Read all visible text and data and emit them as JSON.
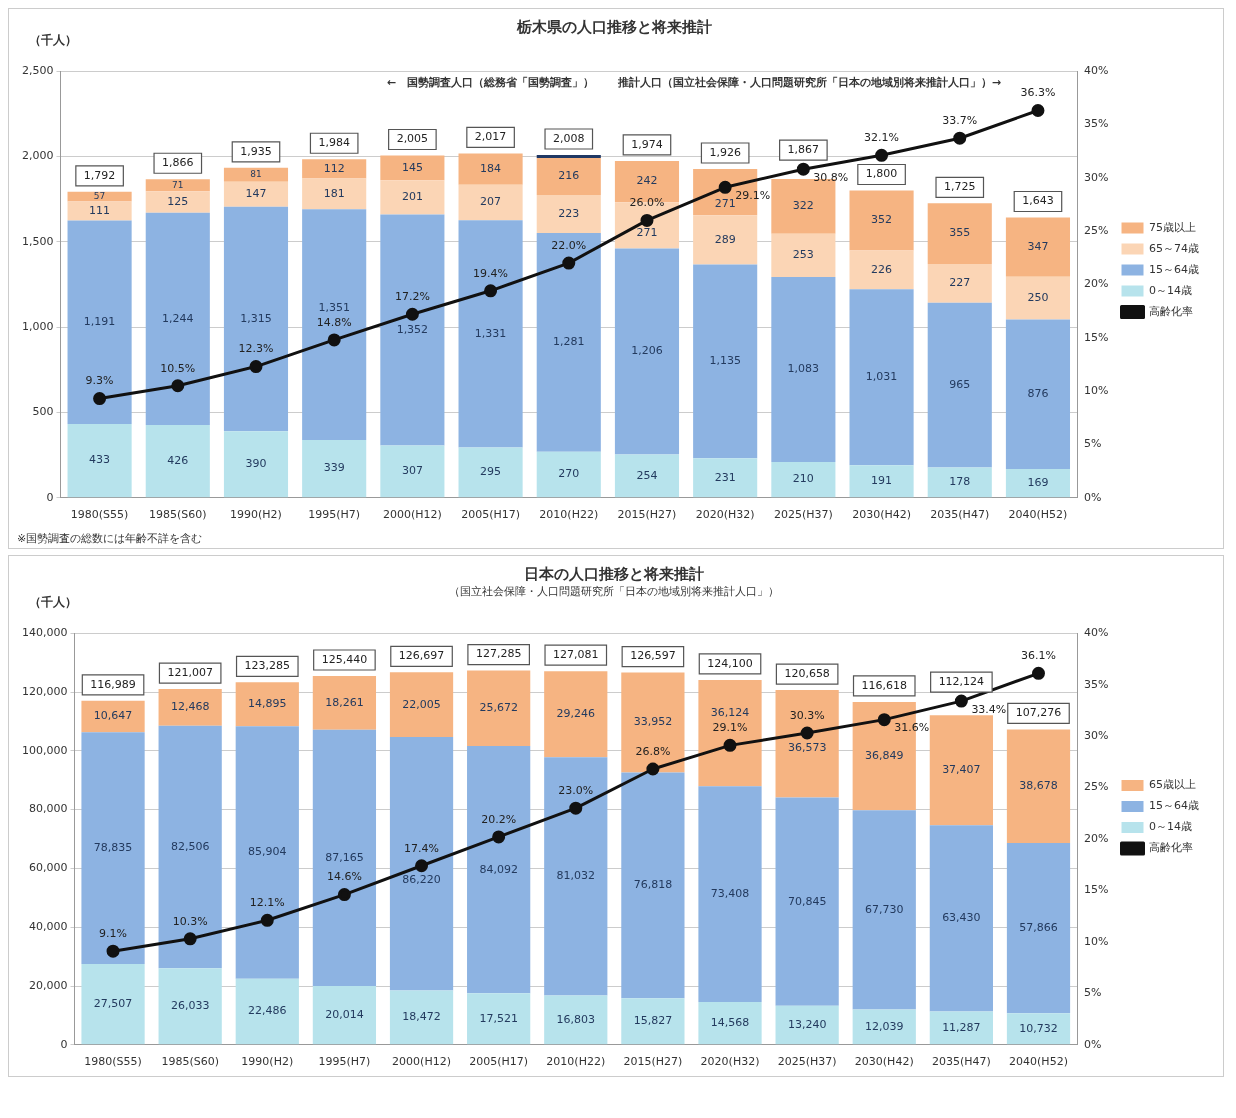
{
  "chart_data": [
    {
      "type": "bar",
      "title": "栃木県の人口推移と将来推計",
      "ylabel": "（千人）",
      "stacked": true,
      "grid": "y",
      "legend": "right",
      "categories": [
        "1980(S55)",
        "1985(S60)",
        "1990(H2)",
        "1995(H7)",
        "2000(H12)",
        "2005(H17)",
        "2010(H22)",
        "2015(H27)",
        "2020(H32)",
        "2025(H37)",
        "2030(H42)",
        "2035(H47)",
        "2040(H52)"
      ],
      "series": [
        {
          "name": "0～14歳",
          "color": "#b7e3ec",
          "values": [
            433,
            426,
            390,
            339,
            307,
            295,
            270,
            254,
            231,
            210,
            191,
            178,
            169
          ],
          "value_labels": [
            "433",
            "426",
            "390",
            "339",
            "307",
            "295",
            "270",
            "254",
            "231",
            "210",
            "191",
            "178",
            "169"
          ]
        },
        {
          "name": "15～64歳",
          "color": "#8db3e2",
          "values": [
            1191,
            1244,
            1315,
            1351,
            1352,
            1331,
            1281,
            1206,
            1135,
            1083,
            1031,
            965,
            876
          ],
          "value_labels": [
            "1,191",
            "1,244",
            "1,315",
            "1,351",
            "1,352",
            "1,331",
            "1,281",
            "1,206",
            "1,135",
            "1,083",
            "1,031",
            "965",
            "876"
          ]
        },
        {
          "name": "65～74歳",
          "color": "#fbd5b5",
          "values": [
            111,
            125,
            147,
            181,
            201,
            207,
            223,
            271,
            289,
            253,
            226,
            227,
            250
          ],
          "value_labels": [
            "111",
            "125",
            "147",
            "181",
            "201",
            "207",
            "223",
            "271",
            "289",
            "253",
            "226",
            "227",
            "250"
          ]
        },
        {
          "name": "75歳以上",
          "color": "#f6b482",
          "values": [
            57,
            71,
            81,
            112,
            145,
            184,
            216,
            242,
            271,
            322,
            352,
            355,
            347
          ],
          "value_labels": [
            "57",
            "71",
            "81",
            "112",
            "145",
            "184",
            "216",
            "242",
            "271",
            "322",
            "352",
            "355",
            "347"
          ]
        },
        {
          "color": "#1f3864",
          "values": [
            null,
            null,
            null,
            null,
            null,
            null,
            18,
            null,
            null,
            null,
            null,
            null,
            null
          ]
        },
        {
          "name": "高齢化率",
          "type": "line",
          "axis": "y2",
          "color": "#111111",
          "marker": "circle",
          "values": [
            9.3,
            10.5,
            12.3,
            14.8,
            17.2,
            19.4,
            22.0,
            26.0,
            29.1,
            30.8,
            32.1,
            33.7,
            36.3
          ],
          "value_labels": [
            "9.3%",
            "10.5%",
            "12.3%",
            "14.8%",
            "17.2%",
            "19.4%",
            "22.0%",
            "26.0%",
            "29.1%",
            "30.8%",
            "32.1%",
            "33.7%",
            "36.3%"
          ]
        }
      ],
      "totals": [
        "1,792",
        "1,866",
        "1,935",
        "1,984",
        "2,005",
        "2,017",
        "2,008",
        "1,974",
        "1,926",
        "1,867",
        "1,800",
        "1,725",
        "1,643"
      ],
      "ylim": [
        0,
        2500
      ],
      "yticks": [
        0,
        {
          "value": 500,
          "label": "500"
        },
        {
          "value": 1000,
          "label": "1,000"
        },
        {
          "value": 1500,
          "label": "1,500"
        },
        {
          "value": 2000,
          "label": "2,000"
        },
        {
          "value": 2500,
          "label": "2,500"
        }
      ],
      "y2lim": [
        0,
        40
      ],
      "y2ticks": [
        {
          "value": 0,
          "label": "0%"
        },
        {
          "value": 5,
          "label": "5%"
        },
        {
          "value": 10,
          "label": "10%"
        },
        {
          "value": 15,
          "label": "15%"
        },
        {
          "value": 20,
          "label": "20%"
        },
        {
          "value": 25,
          "label": "25%"
        },
        {
          "value": 30,
          "label": "30%"
        },
        {
          "value": 35,
          "label": "35%"
        },
        {
          "value": 40,
          "label": "40%"
        }
      ],
      "annotations": [
        "←　国勢調査人口（総務省「国勢調査」）",
        "推計人口（国立社会保障・人口問題研究所「日本の地域別将来推計人口」）→",
        "※国勢調査の総数には年齢不詳を含む"
      ]
    },
    {
      "type": "bar",
      "title": "日本の人口推移と将来推計",
      "subtitle": "（国立社会保障・人口問題研究所「日本の地域別将来推計人口」）",
      "ylabel": "（千人）",
      "stacked": true,
      "grid": "y",
      "legend": "right",
      "categories": [
        "1980(S55)",
        "1985(S60)",
        "1990(H2)",
        "1995(H7)",
        "2000(H12)",
        "2005(H17)",
        "2010(H22)",
        "2015(H27)",
        "2020(H32)",
        "2025(H37)",
        "2030(H42)",
        "2035(H47)",
        "2040(H52)"
      ],
      "series": [
        {
          "name": "0～14歳",
          "color": "#b7e3ec",
          "values": [
            27507,
            26033,
            22486,
            20014,
            18472,
            17521,
            16803,
            15827,
            14568,
            13240,
            12039,
            11287,
            10732
          ],
          "value_labels": [
            "27,507",
            "26,033",
            "22,486",
            "20,014",
            "18,472",
            "17,521",
            "16,803",
            "15,827",
            "14,568",
            "13,240",
            "12,039",
            "11,287",
            "10,732"
          ]
        },
        {
          "name": "15～64歳",
          "color": "#8db3e2",
          "values": [
            78835,
            82506,
            85904,
            87165,
            86220,
            84092,
            81032,
            76818,
            73408,
            70845,
            67730,
            63430,
            57866
          ],
          "value_labels": [
            "78,835",
            "82,506",
            "85,904",
            "87,165",
            "86,220",
            "84,092",
            "81,032",
            "76,818",
            "73,408",
            "70,845",
            "67,730",
            "63,430",
            "57,866"
          ]
        },
        {
          "name": "65歳以上",
          "color": "#f6b482",
          "values": [
            10647,
            12468,
            14895,
            18261,
            22005,
            25672,
            29246,
            33952,
            36124,
            36573,
            36849,
            37407,
            38678
          ],
          "value_labels": [
            "10,647",
            "12,468",
            "14,895",
            "18,261",
            "22,005",
            "25,672",
            "29,246",
            "33,952",
            "36,124",
            "36,573",
            "36,849",
            "37,407",
            "38,678"
          ]
        },
        {
          "name": "高齢化率",
          "type": "line",
          "axis": "y2",
          "color": "#111111",
          "marker": "circle",
          "values": [
            9.1,
            10.3,
            12.1,
            14.6,
            17.4,
            20.2,
            23.0,
            26.8,
            29.1,
            30.3,
            31.6,
            33.4,
            36.1
          ],
          "value_labels": [
            "9.1%",
            "10.3%",
            "12.1%",
            "14.6%",
            "17.4%",
            "20.2%",
            "23.0%",
            "26.8%",
            "29.1%",
            "30.3%",
            "31.6%",
            "33.4%",
            "36.1%"
          ]
        }
      ],
      "totals": [
        "116,989",
        "121,007",
        "123,285",
        "125,440",
        "126,697",
        "127,285",
        "127,081",
        "126,597",
        "124,100",
        "120,658",
        "116,618",
        "112,124",
        "107,276"
      ],
      "ylim": [
        0,
        140000
      ],
      "yticks": [
        0,
        {
          "value": 20000,
          "label": "20,000"
        },
        {
          "value": 40000,
          "label": "40,000"
        },
        {
          "value": 60000,
          "label": "60,000"
        },
        {
          "value": 80000,
          "label": "80,000"
        },
        {
          "value": 100000,
          "label": "100,000"
        },
        {
          "value": 120000,
          "label": "120,000"
        },
        {
          "value": 140000,
          "label": "140,000"
        }
      ],
      "y2lim": [
        0,
        40
      ],
      "y2ticks": [
        {
          "value": 0,
          "label": "0%"
        },
        {
          "value": 5,
          "label": "5%"
        },
        {
          "value": 10,
          "label": "10%"
        },
        {
          "value": 15,
          "label": "15%"
        },
        {
          "value": 20,
          "label": "20%"
        },
        {
          "value": 25,
          "label": "25%"
        },
        {
          "value": 30,
          "label": "30%"
        },
        {
          "value": 35,
          "label": "35%"
        },
        {
          "value": 40,
          "label": "40%"
        }
      ]
    }
  ]
}
